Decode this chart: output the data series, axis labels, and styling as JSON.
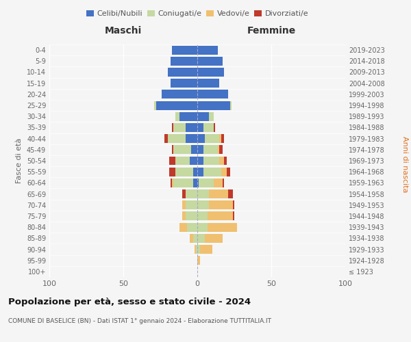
{
  "age_groups": [
    "100+",
    "95-99",
    "90-94",
    "85-89",
    "80-84",
    "75-79",
    "70-74",
    "65-69",
    "60-64",
    "55-59",
    "50-54",
    "45-49",
    "40-44",
    "35-39",
    "30-34",
    "25-29",
    "20-24",
    "15-19",
    "10-14",
    "5-9",
    "0-4"
  ],
  "birth_years": [
    "≤ 1923",
    "1924-1928",
    "1929-1933",
    "1934-1938",
    "1939-1943",
    "1944-1948",
    "1949-1953",
    "1954-1958",
    "1959-1963",
    "1964-1968",
    "1969-1973",
    "1974-1978",
    "1979-1983",
    "1984-1988",
    "1989-1993",
    "1994-1998",
    "1999-2003",
    "2004-2008",
    "2009-2013",
    "2014-2018",
    "2019-2023"
  ],
  "maschi": {
    "celibi": [
      0,
      0,
      0,
      0,
      0,
      0,
      0,
      0,
      3,
      3,
      5,
      4,
      8,
      8,
      12,
      28,
      24,
      18,
      20,
      18,
      17
    ],
    "coniugati": [
      0,
      0,
      1,
      3,
      7,
      8,
      8,
      8,
      13,
      12,
      10,
      12,
      12,
      8,
      3,
      1,
      0,
      0,
      0,
      0,
      0
    ],
    "vedovi": [
      0,
      0,
      1,
      2,
      5,
      2,
      2,
      0,
      1,
      0,
      0,
      0,
      0,
      0,
      0,
      0,
      0,
      0,
      0,
      0,
      0
    ],
    "divorziati": [
      0,
      0,
      0,
      0,
      0,
      0,
      0,
      2,
      1,
      4,
      4,
      1,
      2,
      1,
      0,
      0,
      0,
      0,
      0,
      0,
      0
    ]
  },
  "femmine": {
    "nubili": [
      0,
      0,
      0,
      0,
      0,
      0,
      0,
      0,
      1,
      4,
      4,
      4,
      5,
      4,
      8,
      22,
      21,
      15,
      18,
      17,
      14
    ],
    "coniugate": [
      0,
      0,
      2,
      5,
      7,
      7,
      8,
      8,
      10,
      12,
      11,
      10,
      10,
      7,
      3,
      1,
      0,
      0,
      0,
      0,
      0
    ],
    "vedove": [
      0,
      2,
      8,
      12,
      20,
      17,
      16,
      13,
      6,
      4,
      3,
      1,
      1,
      0,
      0,
      0,
      0,
      0,
      0,
      0,
      0
    ],
    "divorziate": [
      0,
      0,
      0,
      0,
      0,
      1,
      1,
      3,
      1,
      2,
      2,
      2,
      2,
      1,
      0,
      0,
      0,
      0,
      0,
      0,
      0
    ]
  },
  "colors": {
    "celibi": "#4472c4",
    "coniugati": "#c5d9a0",
    "vedovi": "#f0c070",
    "divorziati": "#c0392b"
  },
  "title": "Popolazione per età, sesso e stato civile - 2024",
  "subtitle": "COMUNE DI BASELICE (BN) - Dati ISTAT 1° gennaio 2024 - Elaborazione TUTTITALIA.IT",
  "xlabel_left": "Maschi",
  "xlabel_right": "Femmine",
  "ylabel_left": "Fasce di età",
  "ylabel_right": "Anni di nascita",
  "xlim": 100,
  "background_color": "#f5f5f5",
  "bar_height": 0.8
}
